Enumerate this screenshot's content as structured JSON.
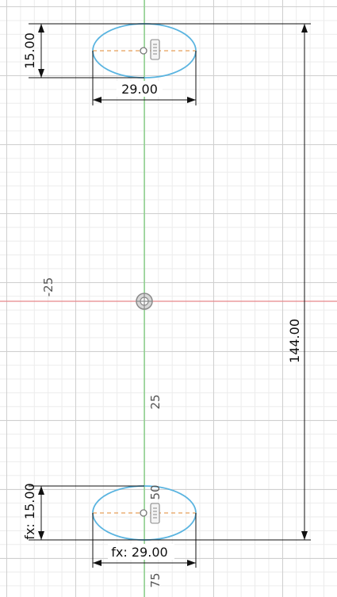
{
  "colors": {
    "x_axis": "#e8868a",
    "y_axis": "#7ed07e",
    "profile": "#5ab4e0",
    "centerline": "#e8a05a",
    "dimension": "#111111"
  },
  "rulers": {
    "neg25": "-25",
    "pos25": "25",
    "pos50": "50",
    "pos75": "75"
  },
  "dimensions": {
    "top_height": "15.00",
    "top_width": "29.00",
    "overall_height": "144.00",
    "bottom_height": "fx: 15.00",
    "bottom_width": "fx: 29.00"
  },
  "icons": {
    "origin": "origin-icon",
    "constraint": "midpoint-constraint-icon",
    "center": "center-point-icon"
  }
}
